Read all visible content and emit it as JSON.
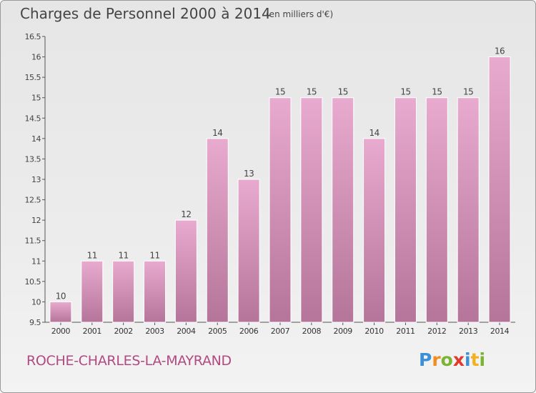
{
  "header": {
    "title": "Charges de Personnel 2000 à 2014",
    "subtitle": "(en milliers d'€)"
  },
  "footer": {
    "commune": "ROCHE-CHARLES-LA-MAYRAND",
    "logo": {
      "p": "P",
      "r": "r",
      "o": "o",
      "x": "x",
      "i1": "i",
      "t": "t",
      "i2": "i"
    }
  },
  "colors": {
    "bar_light": "#e8aace",
    "bar_dark": "#b5759a",
    "label": "#b24a82"
  },
  "chart_data": {
    "type": "bar",
    "title": "Charges de Personnel 2000 à 2014",
    "subtitle": "(en milliers d'€)",
    "categories": [
      "2000",
      "2001",
      "2002",
      "2003",
      "2004",
      "2005",
      "2006",
      "2007",
      "2008",
      "2009",
      "2010",
      "2011",
      "2012",
      "2013",
      "2014"
    ],
    "values": [
      10,
      11,
      11,
      11,
      12,
      14,
      13,
      15,
      15,
      15,
      14,
      15,
      15,
      15,
      16
    ],
    "data_labels": [
      "10",
      "11",
      "11",
      "11",
      "12",
      "14",
      "13",
      "15",
      "15",
      "15",
      "14",
      "15",
      "15",
      "15",
      "16"
    ],
    "yticks": [
      "9.5",
      "10",
      "10.5",
      "11",
      "11.5",
      "12",
      "12.5",
      "13",
      "13.5",
      "14",
      "14.5",
      "15",
      "15.5",
      "16",
      "16.5"
    ],
    "ylim": [
      9.5,
      16.5
    ],
    "grid": false,
    "legend": "none"
  }
}
